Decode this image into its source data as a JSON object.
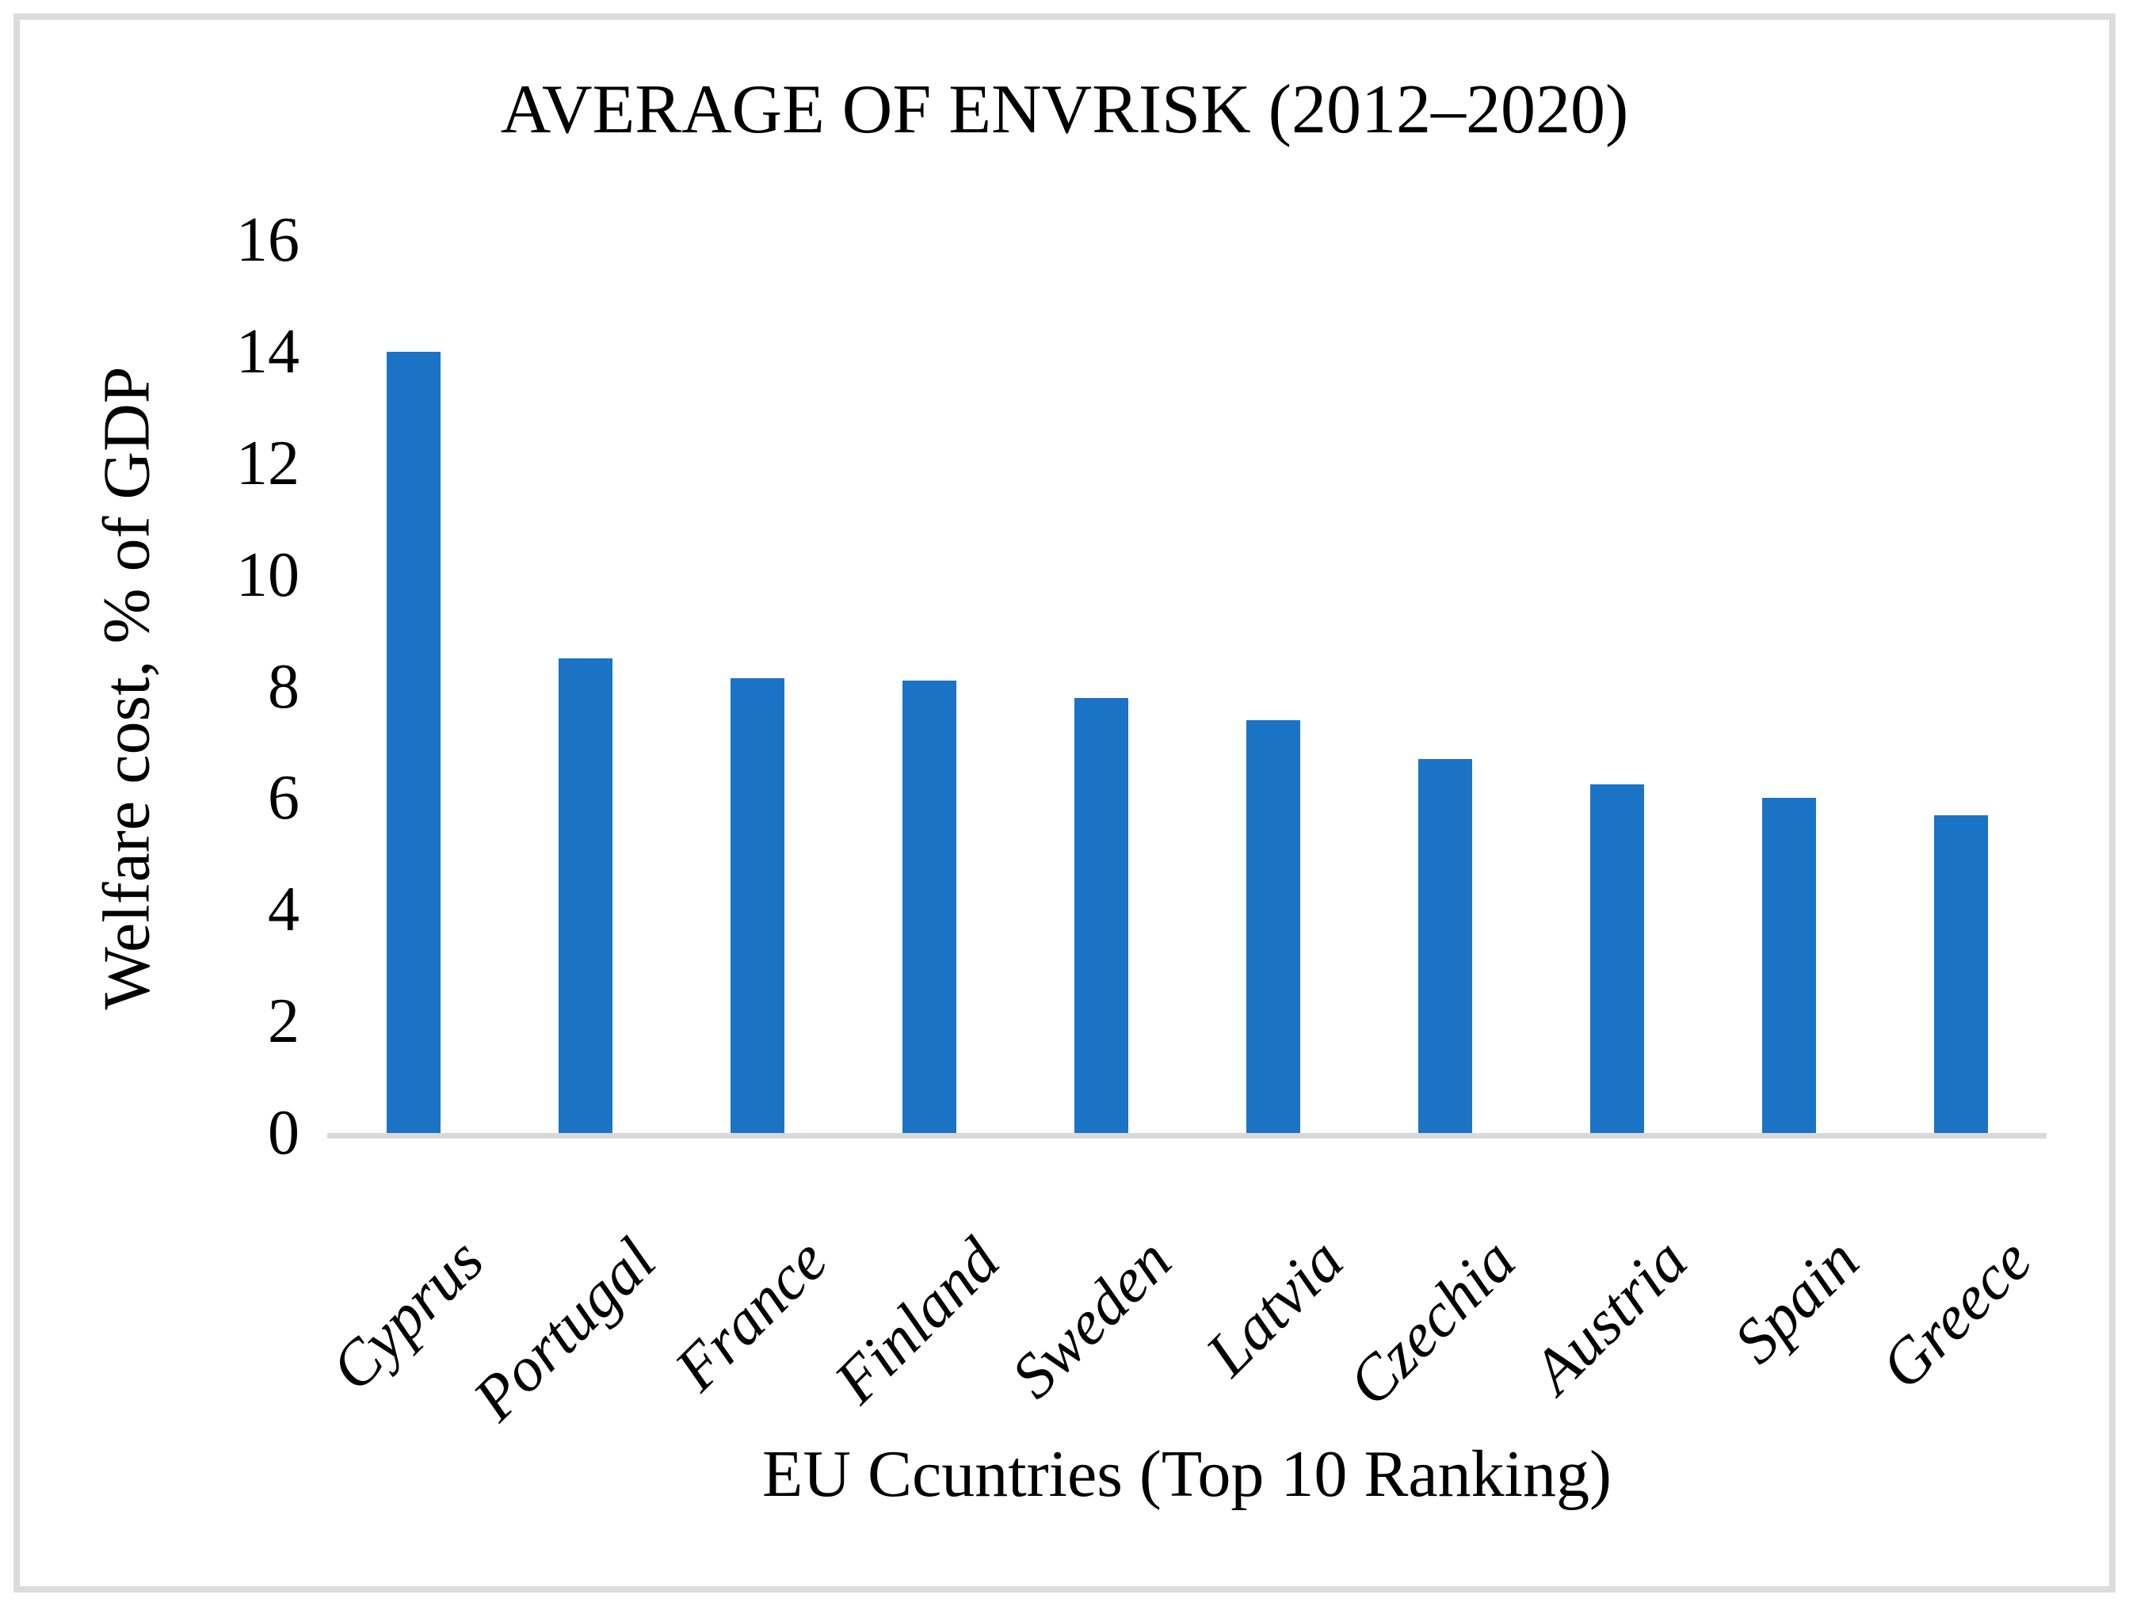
{
  "chart_data": {
    "type": "bar",
    "title": "AVERAGE OF ENVRISK (2012–2020)",
    "xlabel": "EU Ccuntries (Top 10 Ranking)",
    "ylabel": "Welfare cost, % of GDP",
    "categories": [
      "Cyprus",
      "Portugal",
      "France",
      "Finland",
      "Sweden",
      "Latvia",
      "Czechia",
      "Austria",
      "Spain",
      "Greece"
    ],
    "values": [
      14.0,
      8.5,
      8.15,
      8.1,
      7.8,
      7.4,
      6.7,
      6.25,
      6.0,
      5.7
    ],
    "ylim": [
      0,
      16
    ],
    "yticks": [
      0,
      2,
      4,
      6,
      8,
      10,
      12,
      14,
      16
    ],
    "grid": false,
    "legend": "none",
    "bar_color": "#1B73C6",
    "axis_line_color": "#D9D9D9",
    "frame_border_color": "#DCDCDC",
    "text_color": "#000000"
  }
}
